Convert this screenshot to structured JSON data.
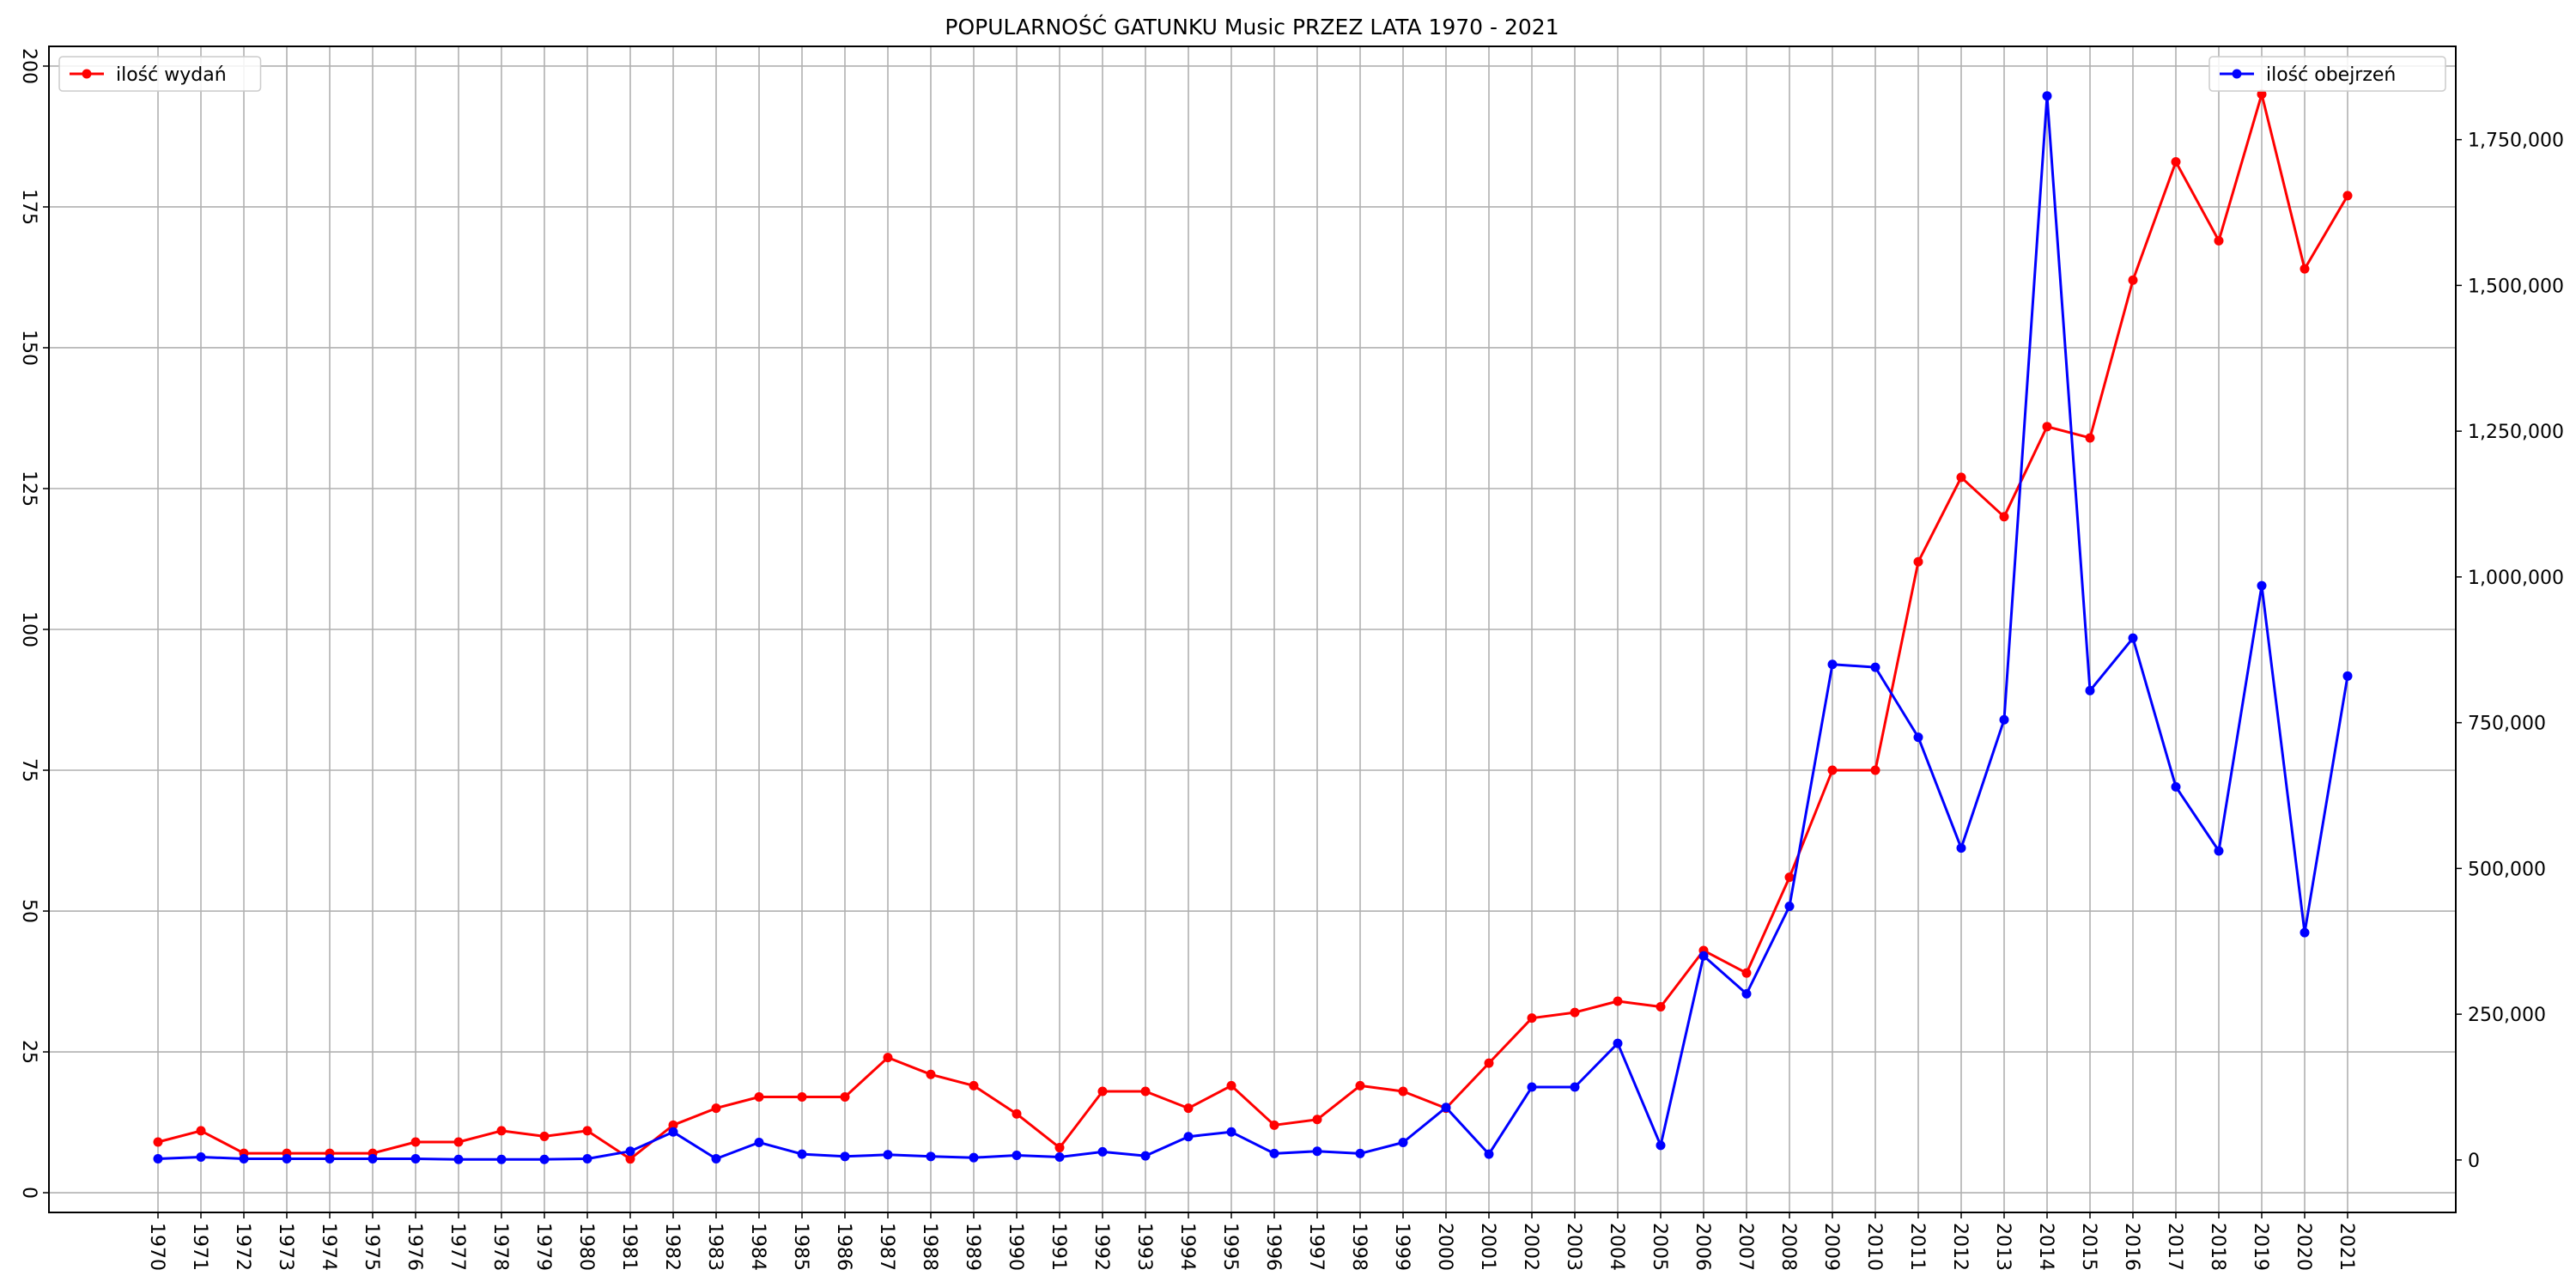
{
  "chart_data": {
    "type": "line",
    "title": "POPULARNOŚĆ GATUNKU Music PRZEZ LATA 1970 - 2021",
    "x": [
      "1970",
      "1971",
      "1972",
      "1973",
      "1974",
      "1975",
      "1976",
      "1977",
      "1978",
      "1979",
      "1980",
      "1981",
      "1982",
      "1983",
      "1984",
      "1985",
      "1986",
      "1987",
      "1988",
      "1989",
      "1990",
      "1991",
      "1992",
      "1993",
      "1994",
      "1995",
      "1996",
      "1997",
      "1998",
      "1999",
      "2000",
      "2001",
      "2002",
      "2003",
      "2004",
      "2005",
      "2006",
      "2007",
      "2008",
      "2009",
      "2010",
      "2011",
      "2012",
      "2013",
      "2014",
      "2015",
      "2016",
      "2017",
      "2018",
      "2019",
      "2020",
      "2021"
    ],
    "series": [
      {
        "name": "ilość wydań",
        "axis": "left",
        "color": "#ff0000",
        "values": [
          9,
          11,
          7,
          7,
          7,
          7,
          9,
          9,
          11,
          10,
          11,
          6,
          12,
          15,
          17,
          17,
          17,
          24,
          21,
          19,
          14,
          8,
          18,
          18,
          15,
          19,
          12,
          13,
          19,
          18,
          15,
          23,
          31,
          32,
          34,
          33,
          43,
          39,
          56,
          75,
          75,
          112,
          127,
          120,
          136,
          134,
          162,
          183,
          169,
          195,
          164,
          177
        ]
      },
      {
        "name": "ilość obejrzeń",
        "axis": "right",
        "color": "#0000ff",
        "values": [
          2000,
          5000,
          2000,
          2000,
          2000,
          2000,
          2000,
          1000,
          1000,
          1000,
          2000,
          15000,
          48000,
          2000,
          30000,
          10000,
          6000,
          9000,
          6000,
          4000,
          8000,
          5000,
          14000,
          7000,
          40000,
          48000,
          11000,
          15000,
          11000,
          30000,
          90000,
          10000,
          125000,
          125000,
          200000,
          25000,
          350000,
          285000,
          435000,
          850000,
          845000,
          725000,
          535000,
          755000,
          1825000,
          805000,
          895000,
          640000,
          530000,
          985000,
          390000,
          830000
        ]
      }
    ],
    "y_left": {
      "ticks": [
        0,
        25,
        50,
        75,
        100,
        125,
        150,
        175,
        200
      ],
      "ylim": [
        -3.5,
        203.5
      ]
    },
    "y_right": {
      "ticks": [
        "0",
        "250,000",
        "500,000",
        "750,000",
        "1,000,000",
        "1,250,000",
        "1,500,000",
        "1,750,000"
      ],
      "tick_values": [
        0,
        250000,
        500000,
        750000,
        1000000,
        1250000,
        1500000,
        1750000
      ],
      "ylim": [
        -90000,
        1910000
      ]
    },
    "grid": true,
    "legend_left": "top-left",
    "legend_right": "top-right"
  }
}
